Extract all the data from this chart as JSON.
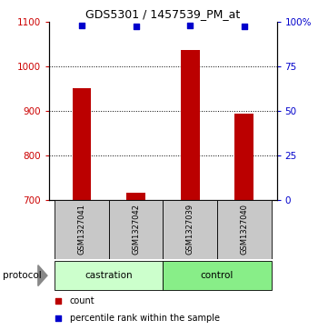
{
  "title": "GDS5301 / 1457539_PM_at",
  "samples": [
    "GSM1327041",
    "GSM1327042",
    "GSM1327039",
    "GSM1327040"
  ],
  "counts": [
    950,
    715,
    1035,
    893
  ],
  "percentile_ranks": [
    98,
    97,
    98,
    97
  ],
  "groups": [
    "castration",
    "castration",
    "control",
    "control"
  ],
  "ylim_left": [
    700,
    1100
  ],
  "ylim_right": [
    0,
    100
  ],
  "yticks_left": [
    700,
    800,
    900,
    1000,
    1100
  ],
  "yticks_right": [
    0,
    25,
    50,
    75,
    100
  ],
  "ytick_labels_right": [
    "0",
    "25",
    "50",
    "75",
    "100%"
  ],
  "bar_color": "#bb0000",
  "dot_color": "#0000cc",
  "bar_width": 0.35,
  "castration_color": "#ccffcc",
  "control_color": "#88ee88",
  "label_count": "count",
  "label_percentile": "percentile rank within the sample",
  "protocol_label": "protocol",
  "bg_color": "#c8c8c8",
  "left_tick_color": "#cc0000",
  "right_tick_color": "#0000cc",
  "grid_ticks": [
    800,
    900,
    1000
  ]
}
